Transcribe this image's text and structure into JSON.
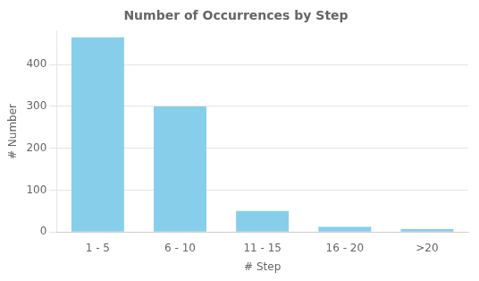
{
  "chart_data": {
    "type": "bar",
    "title": "Number of Occurrences by Step",
    "xlabel": "# Step",
    "ylabel": "# Number",
    "categories": [
      "1 - 5",
      "6 - 10",
      "11 - 15",
      "16 - 20",
      ">20"
    ],
    "values": [
      465,
      300,
      50,
      12,
      7
    ],
    "color": "#87CEEB",
    "ylim": [
      0,
      480
    ],
    "yticks": [
      0,
      100,
      200,
      300,
      400
    ],
    "grid": true
  }
}
